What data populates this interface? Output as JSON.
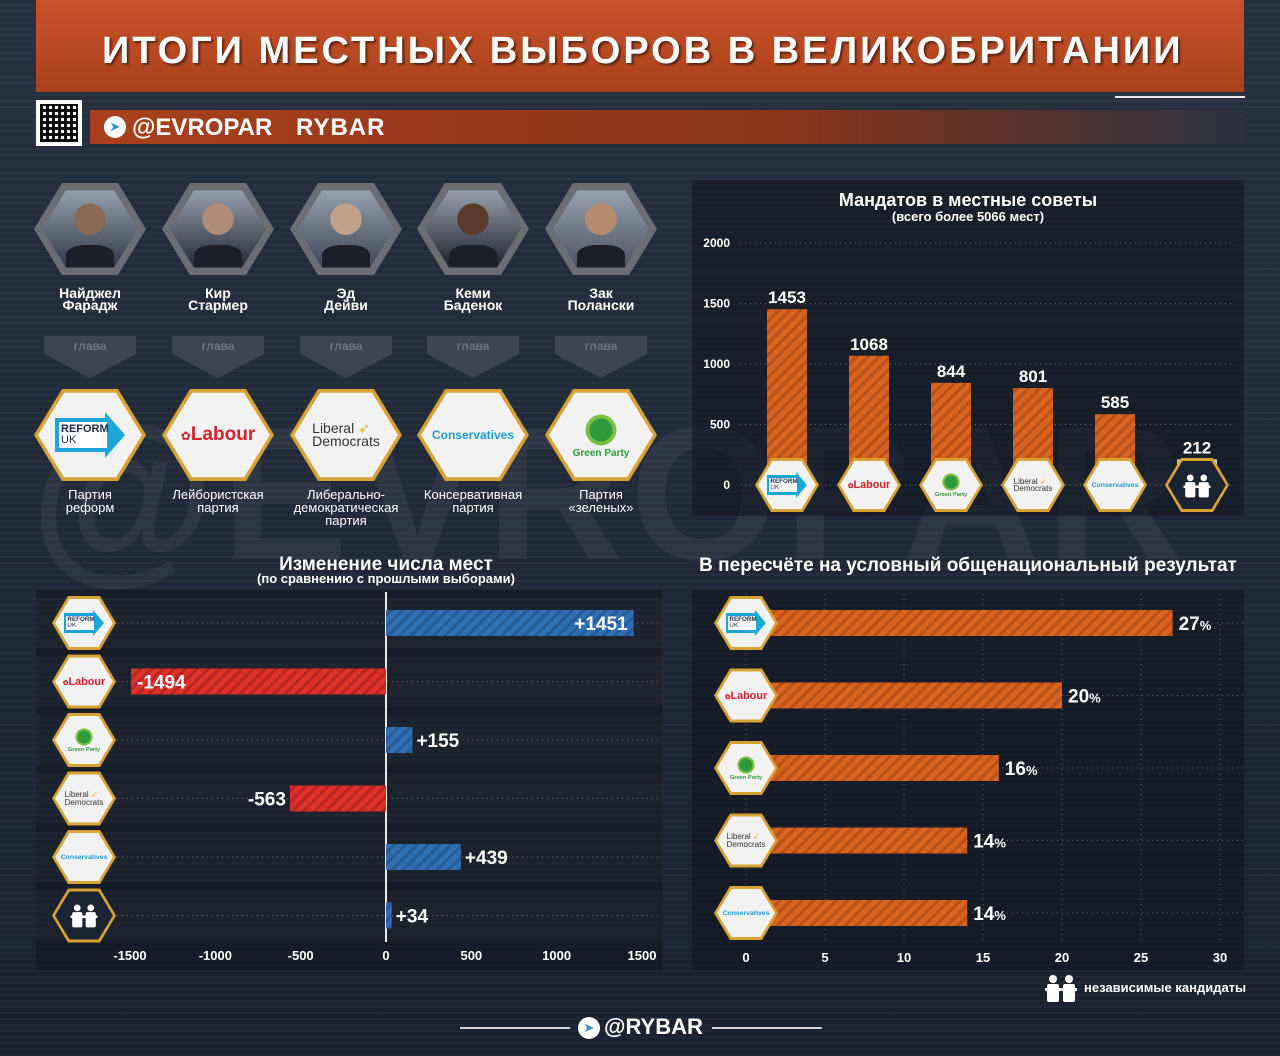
{
  "header": {
    "title": "ИТОГИ МЕСТНЫХ ВЫБОРОВ В ВЕЛИКОБРИТАНИИ"
  },
  "brand": {
    "telegram": "@EVROPAR",
    "name": "RYBAR",
    "footer": "@RYBAR",
    "watermark": "@EVROPAR"
  },
  "arrow_label": "глава",
  "leaders": [
    {
      "name1": "Найджел",
      "name2": "Фарадж",
      "party1": "Партия",
      "party2": "реформ",
      "party3": "",
      "logo": "reform"
    },
    {
      "name1": "Кир",
      "name2": "Стармер",
      "party1": "Лейбористская",
      "party2": "партия",
      "party3": "",
      "logo": "labour"
    },
    {
      "name1": "Эд",
      "name2": "Дейви",
      "party1": "Либерально-",
      "party2": "демократическая",
      "party3": "партия",
      "logo": "libdem"
    },
    {
      "name1": "Кеми",
      "name2": "Баденок",
      "party1": "Консервативная",
      "party2": "партия",
      "party3": "",
      "logo": "conservatives"
    },
    {
      "name1": "Зак",
      "name2": "Полански",
      "party1": "Партия",
      "party2": "«зеленых»",
      "party3": "",
      "logo": "green"
    }
  ],
  "logos": {
    "reform": {
      "line1": "REFORM",
      "line2": "UK"
    },
    "labour": {
      "text": "Labour"
    },
    "libdem": {
      "line1": "Liberal",
      "line2": "Democrats"
    },
    "conservatives": {
      "text": "Conservatives"
    },
    "green": {
      "text": "Green Party"
    }
  },
  "legend": {
    "independents": "независимые кандидаты"
  },
  "colors": {
    "orange": "#d9631f",
    "red": "#e0302a",
    "blue": "#2f6fb3",
    "gold": "#d8a234"
  },
  "chart_data": [
    {
      "type": "bar",
      "title": "Мандатов в местные советы",
      "subtitle": "(всего более 5066 мест)",
      "categories": [
        "reform",
        "labour",
        "green",
        "libdem",
        "conservatives",
        "independents"
      ],
      "values": [
        1453,
        1068,
        844,
        801,
        585,
        212
      ],
      "ylim": [
        0,
        2000
      ],
      "yticks": [
        0,
        500,
        1000,
        1500,
        2000
      ]
    },
    {
      "type": "bar",
      "orientation": "horizontal",
      "title": "Изменение числа мест",
      "subtitle": "(по сравнению с прошлыми выборами)",
      "categories": [
        "reform",
        "labour",
        "green",
        "libdem",
        "conservatives",
        "independents"
      ],
      "values": [
        1451,
        -1494,
        155,
        -563,
        439,
        34
      ],
      "labels": [
        "+1451",
        "-1494",
        "+155",
        "-563",
        "+439",
        "+34"
      ],
      "xlim": [
        -1500,
        1500
      ],
      "xticks": [
        -1500,
        -1000,
        -500,
        0,
        500,
        1000,
        1500
      ]
    },
    {
      "type": "bar",
      "orientation": "horizontal",
      "title": "В пересчёте на условный общенациональный результат",
      "categories": [
        "reform",
        "labour",
        "green",
        "libdem",
        "conservatives"
      ],
      "values": [
        27,
        20,
        16,
        14,
        14
      ],
      "unit": "%",
      "xlim": [
        0,
        30
      ],
      "xticks": [
        0,
        5,
        10,
        15,
        20,
        25,
        30
      ]
    }
  ]
}
